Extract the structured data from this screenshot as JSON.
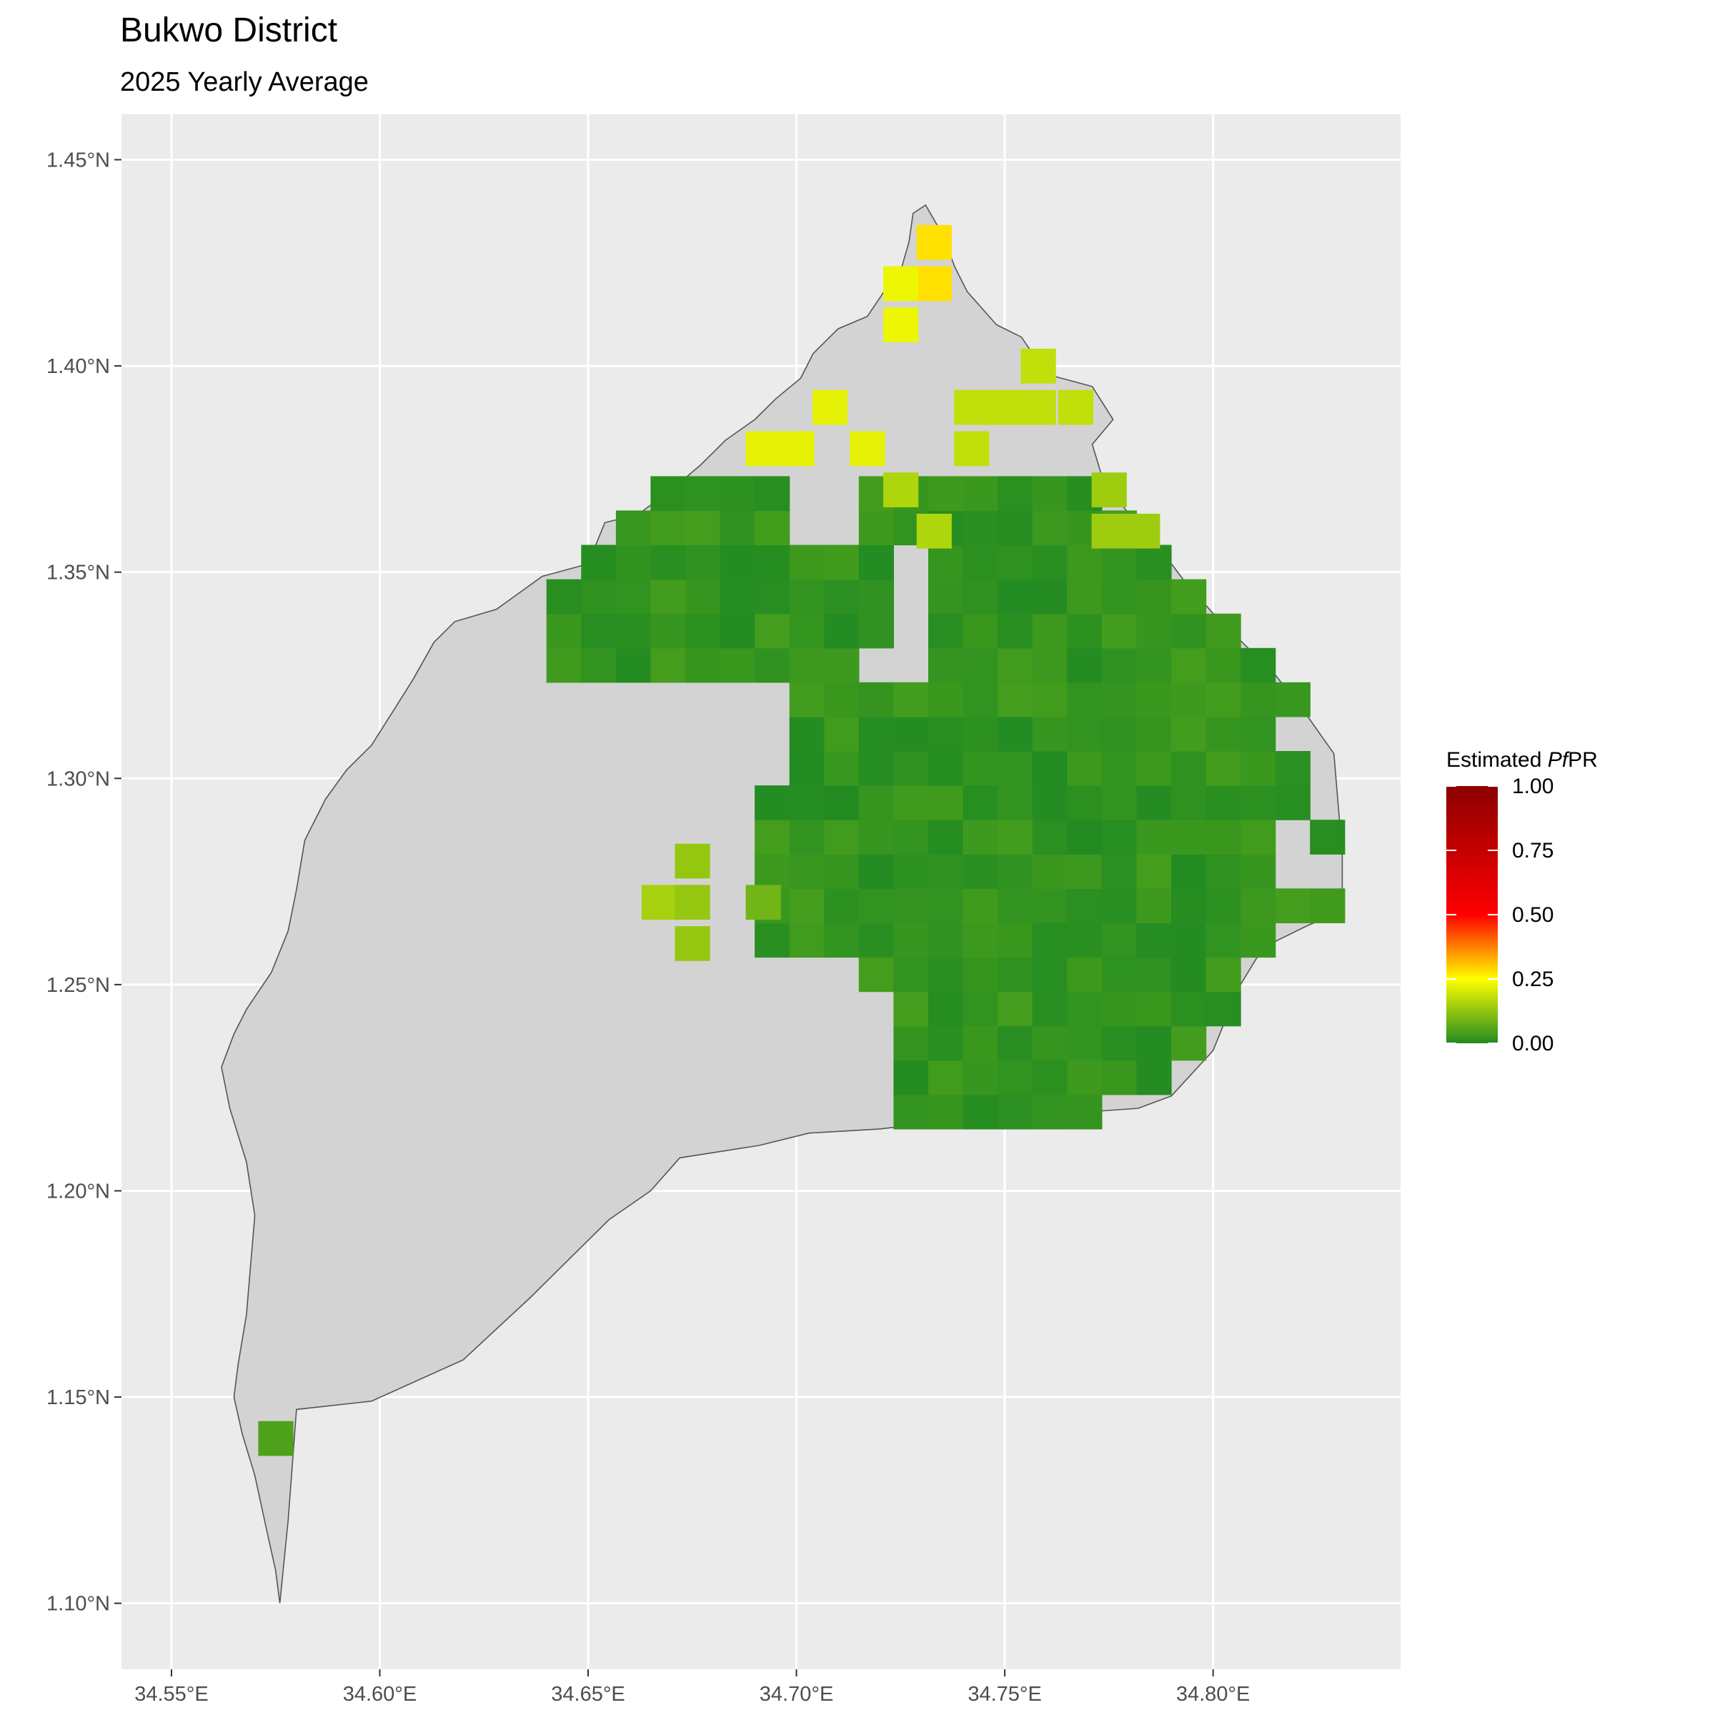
{
  "title": "Bukwo District",
  "subtitle": "2025 Yearly Average",
  "chart_data": {
    "type": "heatmap",
    "x_ticks": [
      "34.55°E",
      "34.60°E",
      "34.65°E",
      "34.70°E",
      "34.75°E",
      "34.80°E"
    ],
    "y_ticks": [
      "1.45°N",
      "1.40°N",
      "1.35°N",
      "1.30°N",
      "1.25°N",
      "1.20°N",
      "1.15°N",
      "1.10°N"
    ],
    "x_tick_values": [
      34.55,
      34.6,
      34.65,
      34.7,
      34.75,
      34.8
    ],
    "y_tick_values": [
      1.45,
      1.4,
      1.35,
      1.3,
      1.25,
      1.2,
      1.15,
      1.1
    ],
    "xlim": [
      34.538,
      34.845
    ],
    "ylim": [
      1.084,
      1.461
    ],
    "grid": true,
    "legend": {
      "title_prefix": "Estimated ",
      "title_italic": "Pf",
      "title_suffix": "PR",
      "ticks": [
        "1.00",
        "0.75",
        "0.50",
        "0.25",
        "0.00"
      ],
      "tick_values": [
        1.0,
        0.75,
        0.5,
        0.25,
        0.0
      ],
      "placement": "right",
      "colors": [
        "#228B22",
        "#FFFF00",
        "#FF0000",
        "#8B0000"
      ]
    },
    "region": {
      "name": "Bukwo District",
      "fill": "#d3d3d3",
      "outline": [
        [
          34.731,
          1.439
        ],
        [
          34.728,
          1.437
        ],
        [
          34.727,
          1.43
        ],
        [
          34.725,
          1.423
        ],
        [
          34.721,
          1.418
        ],
        [
          34.717,
          1.412
        ],
        [
          34.71,
          1.409
        ],
        [
          34.704,
          1.403
        ],
        [
          34.701,
          1.397
        ],
        [
          34.695,
          1.392
        ],
        [
          34.69,
          1.387
        ],
        [
          34.683,
          1.382
        ],
        [
          34.677,
          1.376
        ],
        [
          34.67,
          1.37
        ],
        [
          34.662,
          1.364
        ],
        [
          34.654,
          1.362
        ],
        [
          34.65,
          1.352
        ],
        [
          34.639,
          1.349
        ],
        [
          34.628,
          1.341
        ],
        [
          34.618,
          1.338
        ],
        [
          34.613,
          1.333
        ],
        [
          34.608,
          1.324
        ],
        [
          34.603,
          1.316
        ],
        [
          34.598,
          1.308
        ],
        [
          34.592,
          1.302
        ],
        [
          34.587,
          1.295
        ],
        [
          34.582,
          1.285
        ],
        [
          34.58,
          1.273
        ],
        [
          34.578,
          1.263
        ],
        [
          34.574,
          1.253
        ],
        [
          34.568,
          1.244
        ],
        [
          34.565,
          1.238
        ],
        [
          34.562,
          1.23
        ],
        [
          34.564,
          1.22
        ],
        [
          34.568,
          1.207
        ],
        [
          34.57,
          1.194
        ],
        [
          34.569,
          1.182
        ],
        [
          34.568,
          1.17
        ],
        [
          34.566,
          1.158
        ],
        [
          34.565,
          1.15
        ],
        [
          34.567,
          1.141
        ],
        [
          34.57,
          1.131
        ],
        [
          34.573,
          1.117
        ],
        [
          34.575,
          1.108
        ],
        [
          34.576,
          1.1
        ],
        [
          34.578,
          1.12
        ],
        [
          34.58,
          1.147
        ],
        [
          34.598,
          1.149
        ],
        [
          34.62,
          1.159
        ],
        [
          34.636,
          1.174
        ],
        [
          34.646,
          1.184
        ],
        [
          34.655,
          1.193
        ],
        [
          34.665,
          1.2
        ],
        [
          34.672,
          1.208
        ],
        [
          34.691,
          1.211
        ],
        [
          34.703,
          1.214
        ],
        [
          34.72,
          1.215
        ],
        [
          34.745,
          1.218
        ],
        [
          34.768,
          1.219
        ],
        [
          34.782,
          1.22
        ],
        [
          34.79,
          1.223
        ],
        [
          34.8,
          1.234
        ],
        [
          34.806,
          1.249
        ],
        [
          34.812,
          1.259
        ],
        [
          34.822,
          1.264
        ],
        [
          34.831,
          1.268
        ],
        [
          34.831,
          1.282
        ],
        [
          34.83,
          1.294
        ],
        [
          34.829,
          1.306
        ],
        [
          34.822,
          1.316
        ],
        [
          34.815,
          1.325
        ],
        [
          34.807,
          1.333
        ],
        [
          34.8,
          1.34
        ],
        [
          34.793,
          1.348
        ],
        [
          34.787,
          1.356
        ],
        [
          34.78,
          1.364
        ],
        [
          34.774,
          1.371
        ],
        [
          34.771,
          1.381
        ],
        [
          34.776,
          1.387
        ],
        [
          34.771,
          1.395
        ],
        [
          34.76,
          1.398
        ],
        [
          34.754,
          1.407
        ],
        [
          34.748,
          1.41
        ],
        [
          34.741,
          1.418
        ],
        [
          34.738,
          1.424
        ],
        [
          34.735,
          1.432
        ]
      ]
    },
    "cells": [
      {
        "lat": 1.43,
        "lon": 34.733,
        "v": 0.28
      },
      {
        "lat": 1.42,
        "lon": 34.733,
        "v": 0.28
      },
      {
        "lat": 1.42,
        "lon": 34.725,
        "v": 0.23
      },
      {
        "lat": 1.41,
        "lon": 34.725,
        "v": 0.23
      },
      {
        "lat": 1.39,
        "lon": 34.708,
        "v": 0.22
      },
      {
        "lat": 1.38,
        "lon": 34.7,
        "v": 0.22
      },
      {
        "lat": 1.38,
        "lon": 34.692,
        "v": 0.22
      },
      {
        "lat": 1.4,
        "lon": 34.758,
        "v": 0.18
      },
      {
        "lat": 1.39,
        "lon": 34.742,
        "v": 0.18
      },
      {
        "lat": 1.39,
        "lon": 34.75,
        "v": 0.18
      },
      {
        "lat": 1.39,
        "lon": 34.758,
        "v": 0.18
      },
      {
        "lat": 1.39,
        "lon": 34.767,
        "v": 0.18
      },
      {
        "lat": 1.38,
        "lon": 34.742,
        "v": 0.18
      },
      {
        "lat": 1.38,
        "lon": 34.717,
        "v": 0.22
      },
      {
        "lat": 1.37,
        "lon": 34.725,
        "v": 0.16
      },
      {
        "lat": 1.36,
        "lon": 34.733,
        "v": 0.16
      },
      {
        "lat": 1.37,
        "lon": 34.775,
        "v": 0.14
      },
      {
        "lat": 1.36,
        "lon": 34.775,
        "v": 0.14
      },
      {
        "lat": 1.36,
        "lon": 34.783,
        "v": 0.14
      },
      {
        "lat": 1.27,
        "lon": 34.667,
        "v": 0.15
      },
      {
        "lat": 1.27,
        "lon": 34.675,
        "v": 0.13
      },
      {
        "lat": 1.26,
        "lon": 34.675,
        "v": 0.13
      },
      {
        "lat": 1.28,
        "lon": 34.675,
        "v": 0.13
      },
      {
        "lat": 1.27,
        "lon": 34.692,
        "v": 0.09
      },
      {
        "lat": 1.14,
        "lon": 34.575,
        "v": 0.05
      }
    ],
    "main_value_range": [
      0.0,
      0.04
    ]
  }
}
